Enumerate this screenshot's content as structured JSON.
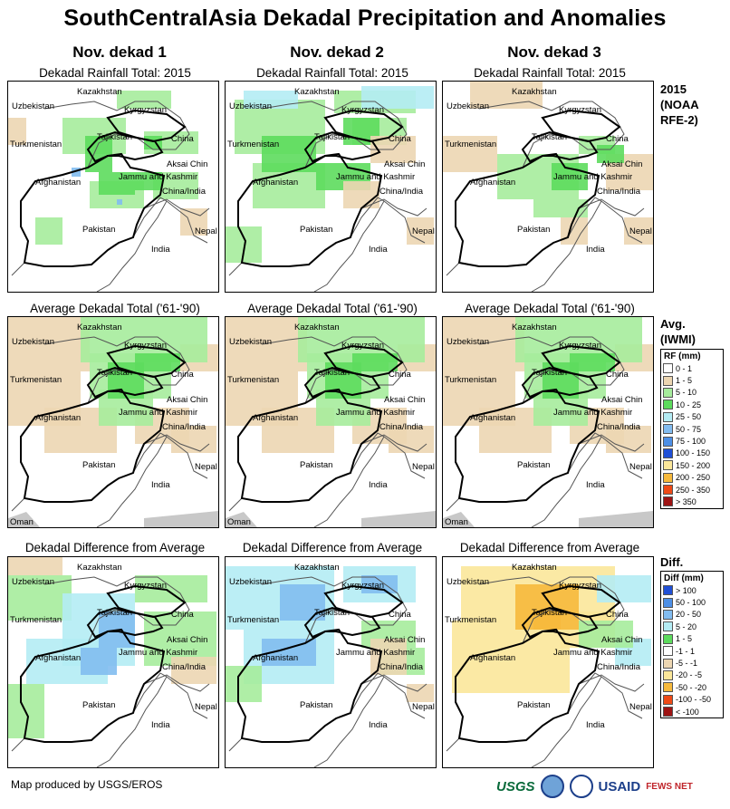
{
  "title": "SouthCentralAsia Dekadal Precipitation and Anomalies",
  "dekads": [
    "Nov. dekad 1",
    "Nov. dekad 2",
    "Nov. dekad 3"
  ],
  "row_labels": {
    "rainfall": "Dekadal Rainfall Total: 2015",
    "average": "Average Dekadal Total ('61-'90)",
    "difference": "Dekadal Difference from Average"
  },
  "place_labels": {
    "kazakhstan": "Kazakhstan",
    "uzbekistan": "Uzbekistan",
    "kyrgyzstan": "Kyrgyzstan",
    "tajikistan": "Tajikistan",
    "turkmenistan": "Turkmenistan",
    "china": "China",
    "aksai_chin": "Aksai Chin",
    "jammu": "Jammu and Kashmir",
    "china_india": "China/India",
    "afghanistan": "Afghanistan",
    "pakistan": "Pakistan",
    "nepal": "Nepal",
    "india": "India",
    "oman": "Oman"
  },
  "legends": {
    "rfe": {
      "lines": [
        "2015",
        "(NOAA",
        "RFE-2)"
      ]
    },
    "avg": {
      "lines": [
        "Avg.",
        "(IWMI)"
      ],
      "header": "RF (mm)",
      "items": [
        {
          "label": "0 - 1",
          "color": "#ffffff"
        },
        {
          "label": "1 - 5",
          "color": "#ecd6b2"
        },
        {
          "label": "5 - 10",
          "color": "#a6ec9c"
        },
        {
          "label": "10 - 25",
          "color": "#5ddb5d"
        },
        {
          "label": "25 - 50",
          "color": "#b4ecf4"
        },
        {
          "label": "50 - 75",
          "color": "#82bcf0"
        },
        {
          "label": "75 - 100",
          "color": "#4d8fe6"
        },
        {
          "label": "100 - 150",
          "color": "#1f4fd6"
        },
        {
          "label": "150 - 200",
          "color": "#fbe79a"
        },
        {
          "label": "200 - 250",
          "color": "#f6b93c"
        },
        {
          "label": "250 - 350",
          "color": "#ee4a17"
        },
        {
          "label": "> 350",
          "color": "#9e1313"
        }
      ]
    },
    "diff": {
      "lines": [
        "Diff."
      ],
      "header": "Diff (mm)",
      "items": [
        {
          "label": "> 100",
          "color": "#1f4fd6"
        },
        {
          "label": "50 - 100",
          "color": "#4d8fe6"
        },
        {
          "label": "20 - 50",
          "color": "#82bcf0"
        },
        {
          "label": "5 - 20",
          "color": "#b4ecf4"
        },
        {
          "label": "1 - 5",
          "color": "#5ddb5d"
        },
        {
          "label": "-1 - 1",
          "color": "#ffffff"
        },
        {
          "label": "-5 - -1",
          "color": "#ecd6b2"
        },
        {
          "label": "-20 - -5",
          "color": "#fbe79a"
        },
        {
          "label": "-50 - -20",
          "color": "#f6b93c"
        },
        {
          "label": "-100 - -50",
          "color": "#ee4a17"
        },
        {
          "label": "< -100",
          "color": "#9e1313"
        }
      ]
    }
  },
  "footer": "Map produced by USGS/EROS",
  "logos": {
    "usgs": "USGS",
    "usaid": "USAID",
    "fews": "FEWS NET"
  },
  "colors": {
    "tan": "#ecd6b2",
    "light_green": "#a6ec9c",
    "green": "#5ddb5d",
    "light_blue": "#b4ecf4",
    "blue": "#82bcf0",
    "mid_blue": "#4d8fe6",
    "yellow": "#fbe79a",
    "orange": "#f6b93c",
    "sea": "#c8c8c8"
  }
}
